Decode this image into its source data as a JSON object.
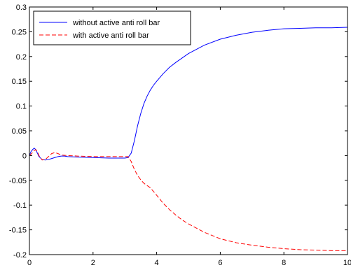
{
  "chart_data": {
    "type": "line",
    "title": "",
    "xlabel": "",
    "ylabel": "",
    "xlim": [
      0,
      10
    ],
    "ylim": [
      -0.2,
      0.3
    ],
    "grid": false,
    "legend_placement": "top-left",
    "x_ticks": [
      0,
      2,
      4,
      6,
      8,
      10
    ],
    "x_tick_labels": [
      "0",
      "2",
      "4",
      "6",
      "8",
      "10"
    ],
    "y_ticks": [
      -0.2,
      -0.15,
      -0.1,
      -0.05,
      0,
      0.05,
      0.1,
      0.15,
      0.2,
      0.25,
      0.3
    ],
    "y_tick_labels": [
      "-0.2",
      "-0.15",
      "-0.1",
      "-0.05",
      "0",
      "0.05",
      "0.1",
      "0.15",
      "0.2",
      "0.25",
      "0.3"
    ],
    "series": [
      {
        "name": "without active anti roll bar",
        "color": "#0000ff",
        "style": "solid",
        "x": [
          0,
          0.05,
          0.1,
          0.15,
          0.2,
          0.25,
          0.3,
          0.4,
          0.5,
          0.6,
          0.7,
          0.8,
          0.9,
          1.0,
          1.1,
          1.2,
          1.5,
          2.0,
          2.5,
          2.8,
          3.0,
          3.1,
          3.2,
          3.3,
          3.4,
          3.5,
          3.6,
          3.7,
          3.8,
          3.9,
          4.0,
          4.2,
          4.4,
          4.6,
          4.8,
          5.0,
          5.5,
          6.0,
          6.5,
          7.0,
          7.5,
          8.0,
          8.5,
          9.0,
          9.5,
          10.0
        ],
        "y": [
          0.0,
          0.008,
          0.012,
          0.015,
          0.012,
          0.005,
          -0.002,
          -0.008,
          -0.009,
          -0.008,
          -0.006,
          -0.004,
          -0.002,
          -0.001,
          -0.001,
          -0.002,
          -0.003,
          -0.004,
          -0.005,
          -0.005,
          -0.005,
          -0.004,
          0.005,
          0.03,
          0.06,
          0.085,
          0.105,
          0.12,
          0.132,
          0.142,
          0.15,
          0.165,
          0.178,
          0.188,
          0.197,
          0.206,
          0.223,
          0.235,
          0.243,
          0.249,
          0.253,
          0.256,
          0.257,
          0.258,
          0.258,
          0.259
        ]
      },
      {
        "name": "with active anti roll bar",
        "color": "#ff0000",
        "style": "dashed",
        "x": [
          0,
          0.1,
          0.15,
          0.2,
          0.25,
          0.3,
          0.4,
          0.5,
          0.6,
          0.7,
          0.8,
          0.9,
          1.0,
          1.2,
          1.5,
          2.0,
          2.5,
          2.8,
          3.0,
          3.1,
          3.2,
          3.3,
          3.4,
          3.5,
          3.6,
          3.8,
          4.0,
          4.2,
          4.4,
          4.6,
          4.8,
          5.0,
          5.5,
          6.0,
          6.5,
          7.0,
          7.5,
          8.0,
          8.5,
          9.0,
          9.5,
          10.0
        ],
        "y": [
          0.0,
          0.006,
          0.01,
          0.012,
          0.008,
          0.0,
          -0.009,
          -0.008,
          -0.002,
          0.004,
          0.006,
          0.004,
          0.001,
          0.0,
          -0.001,
          -0.002,
          -0.002,
          -0.002,
          -0.002,
          -0.002,
          -0.012,
          -0.028,
          -0.04,
          -0.049,
          -0.056,
          -0.065,
          -0.08,
          -0.096,
          -0.109,
          -0.12,
          -0.13,
          -0.138,
          -0.155,
          -0.168,
          -0.176,
          -0.181,
          -0.185,
          -0.188,
          -0.19,
          -0.191,
          -0.192,
          -0.192
        ]
      }
    ]
  }
}
